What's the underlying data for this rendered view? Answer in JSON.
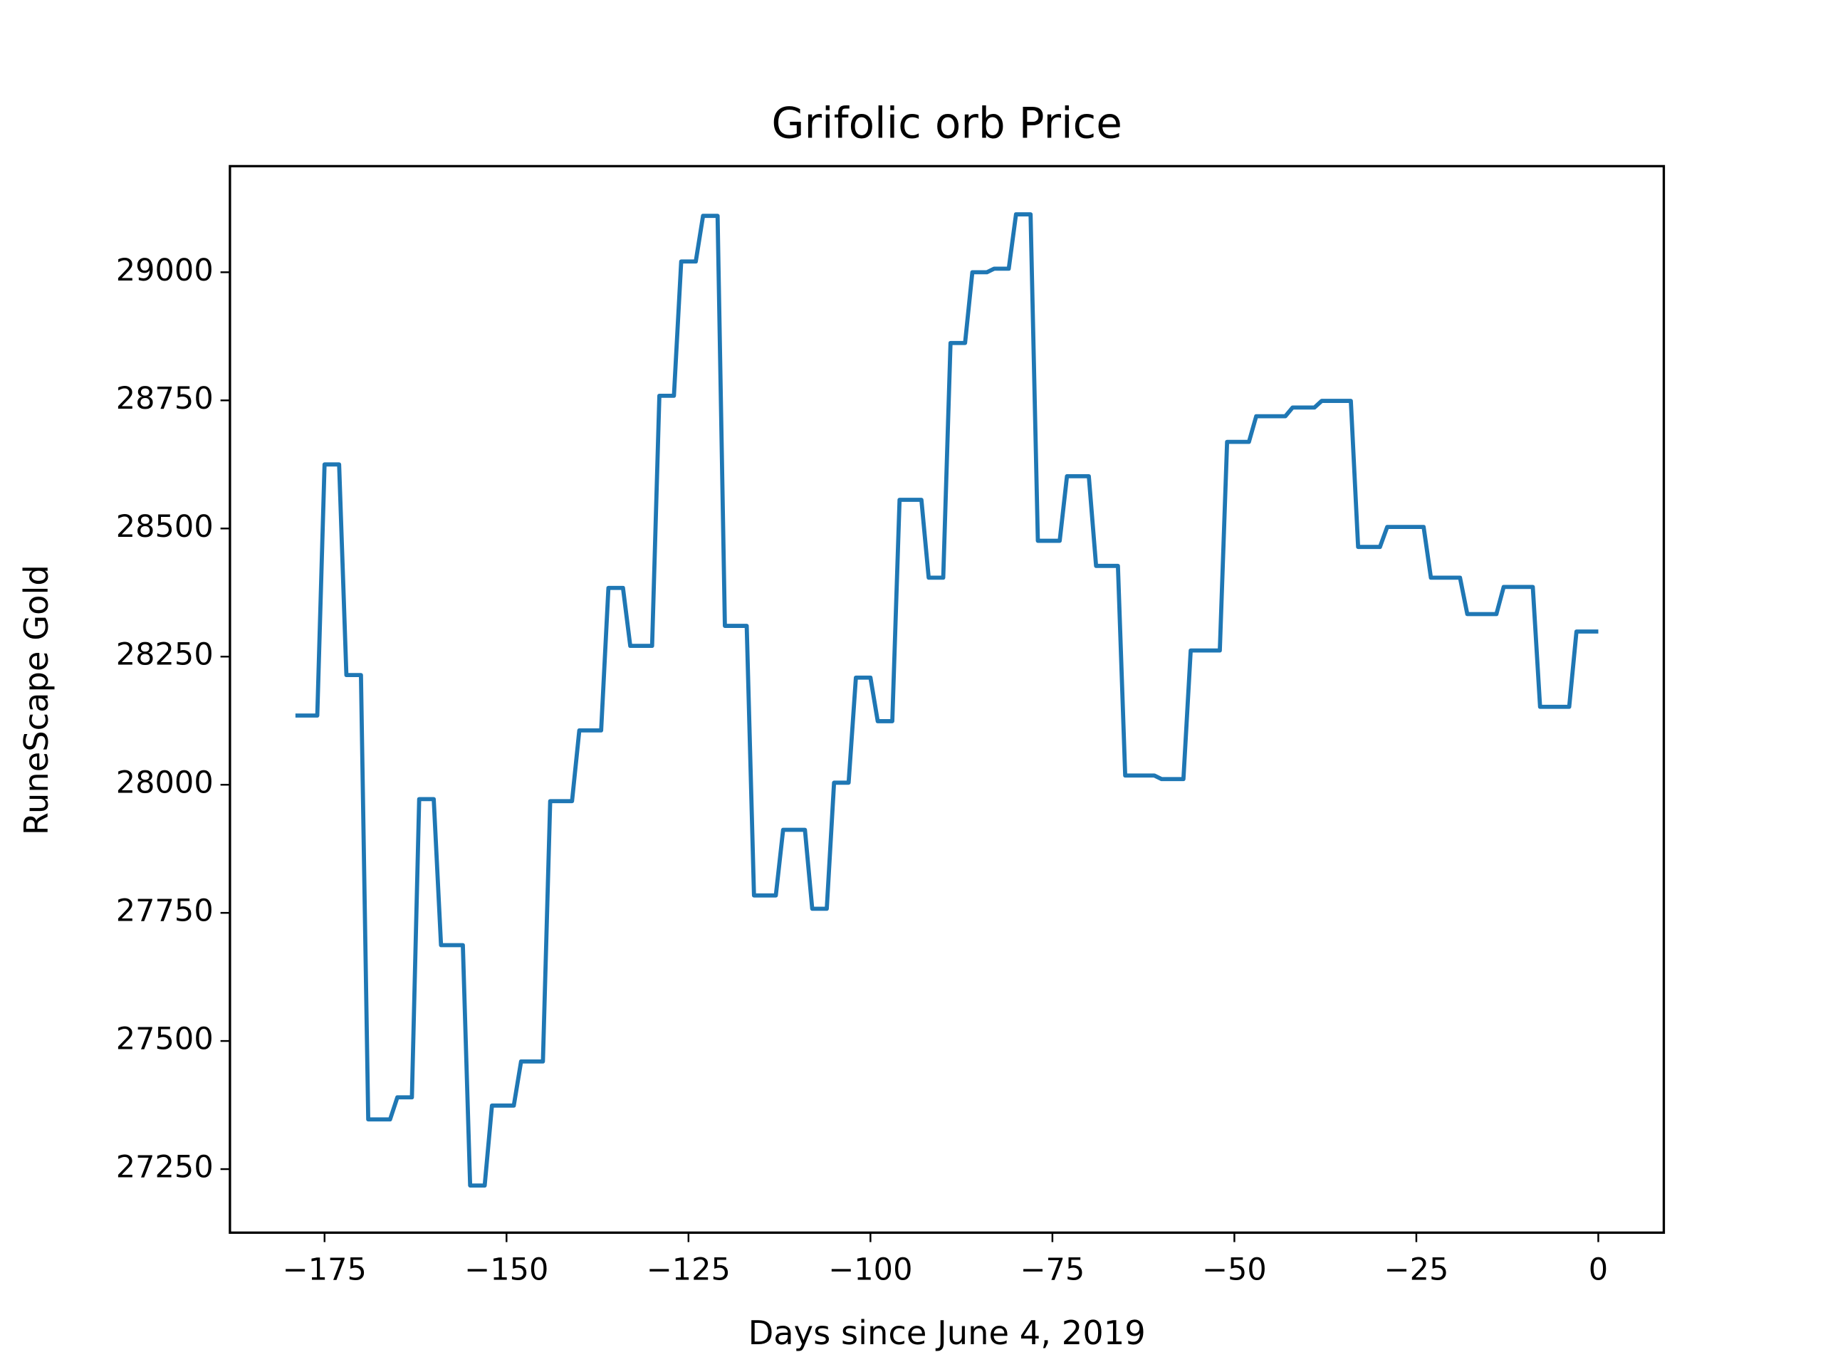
{
  "chart_data": {
    "type": "line",
    "title": "Grifolic orb Price",
    "xlabel": "Days since June 4, 2019",
    "ylabel": "RuneScape Gold",
    "xlim": [
      -188,
      9
    ],
    "ylim": [
      27126,
      29207
    ],
    "xticks": [
      {
        "value": -175,
        "label": "−175"
      },
      {
        "value": -150,
        "label": "−150"
      },
      {
        "value": -125,
        "label": "−125"
      },
      {
        "value": -100,
        "label": "−100"
      },
      {
        "value": -75,
        "label": "−75"
      },
      {
        "value": -50,
        "label": "−50"
      },
      {
        "value": -25,
        "label": "−25"
      },
      0
    ],
    "yticks": [
      27250,
      27500,
      27750,
      28000,
      28250,
      28500,
      28750,
      29000
    ],
    "series": [
      {
        "color": "#1f77b4",
        "x": [
          -179,
          -176,
          -175,
          -173,
          -172,
          -170,
          -169,
          -166,
          -165,
          -163,
          -162,
          -160,
          -159,
          -156,
          -155,
          -153,
          -152,
          -149,
          -148,
          -145,
          -144,
          -141,
          -140,
          -137,
          -136,
          -134,
          -133,
          -130,
          -129,
          -127,
          -126,
          -124,
          -123,
          -121,
          -120,
          -117,
          -116,
          -113,
          -112,
          -109,
          -108,
          -106,
          -105,
          -103,
          -102,
          -100,
          -99,
          -97,
          -96,
          -93,
          -92,
          -90,
          -89,
          -87,
          -86,
          -84,
          -83,
          -81,
          -80,
          -78,
          -77,
          -74,
          -73,
          -70,
          -69,
          -66,
          -65,
          -61,
          -60,
          -57,
          -56,
          -52,
          -51,
          -48,
          -47,
          -43,
          -42,
          -39,
          -38,
          -34,
          -33,
          -30,
          -29,
          -24,
          -23,
          -19,
          -18,
          -14,
          -13,
          -9,
          -8,
          -4,
          -3,
          0
        ],
        "values": [
          28135,
          28135,
          28625,
          28625,
          28214,
          28214,
          27347,
          27347,
          27390,
          27390,
          27972,
          27972,
          27687,
          27687,
          27218,
          27218,
          27374,
          27374,
          27460,
          27460,
          27968,
          27968,
          28106,
          28106,
          28384,
          28384,
          28271,
          28271,
          28759,
          28759,
          29021,
          29021,
          29110,
          29110,
          28310,
          28310,
          27784,
          27784,
          27912,
          27912,
          27758,
          27758,
          28004,
          28004,
          28209,
          28209,
          28124,
          28124,
          28556,
          28556,
          28404,
          28404,
          28862,
          28862,
          29000,
          29000,
          29007,
          29007,
          29113,
          29113,
          28476,
          28476,
          28602,
          28602,
          28427,
          28427,
          28018,
          28018,
          28011,
          28011,
          28262,
          28262,
          28669,
          28669,
          28719,
          28719,
          28736,
          28736,
          28749,
          28749,
          28464,
          28464,
          28503,
          28503,
          28404,
          28404,
          28333,
          28333,
          28386,
          28386,
          28152,
          28152,
          28299,
          28299
        ]
      }
    ]
  }
}
